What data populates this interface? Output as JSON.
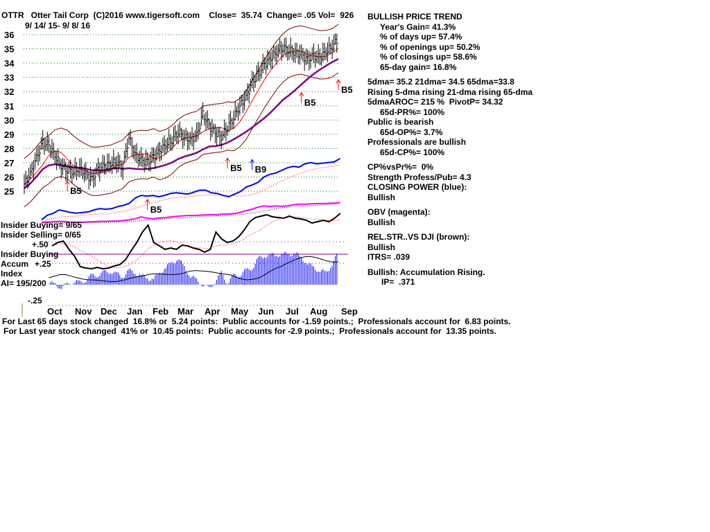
{
  "header": {
    "title": "OTTR   Otter Tail Corp  (C)2016 www.tigersoft.com    Close=  35.74  Change= .05 Vol=  926",
    "range": "9/ 14/ 15- 9/ 8/ 16"
  },
  "right_panel": [
    {
      "text": "BULLISH PRICE TREND",
      "indent": 0
    },
    {
      "text": "Year's Gain= 41.3%",
      "indent": 1
    },
    {
      "text": "% of days up= 57.4%",
      "indent": 1
    },
    {
      "text": "% of openings up= 50.2%",
      "indent": 1
    },
    {
      "text": "% of closings up= 58.6%",
      "indent": 1
    },
    {
      "text": "65-day gain= 16.8%",
      "indent": 1
    },
    {
      "text": "",
      "indent": 0
    },
    {
      "text": "5dma= 35.2 21dma= 34.5 65dma=33.8",
      "indent": 0
    },
    {
      "text": "Rising 5-dma rising 21-dma rising 65-dma",
      "indent": 0
    },
    {
      "text": "5dmaAROC= 215 %  PivotP= 34.32",
      "indent": 0
    },
    {
      "text": "65d-PR%= 100%",
      "indent": 1
    },
    {
      "text": "Public is bearish",
      "indent": 0
    },
    {
      "text": "65d-OP%= 3.7%",
      "indent": 1
    },
    {
      "text": "Professionals are bullish",
      "indent": 0
    },
    {
      "text": "65d-CP%= 100%",
      "indent": 1
    },
    {
      "text": "",
      "indent": 0
    },
    {
      "text": "CP%vsPr%=  0%",
      "indent": 0
    },
    {
      "text": "Strength Profess/Pub= 4.3",
      "indent": 0
    },
    {
      "text": "CLOSING POWER (blue):",
      "indent": 0
    },
    {
      "text": "Bullish",
      "indent": 0
    },
    {
      "text": "",
      "indent": 0
    },
    {
      "text": "OBV (magenta):",
      "indent": 0
    },
    {
      "text": "Bullish",
      "indent": 0
    },
    {
      "text": "",
      "indent": 0
    },
    {
      "text": "REL.STR..VS DJI (brown):",
      "indent": 0
    },
    {
      "text": "Bullish",
      "indent": 0
    },
    {
      "text": "ITRS= .039",
      "indent": 0
    },
    {
      "text": "",
      "indent": 0
    },
    {
      "text": "Bullish: Accumulation Rising.",
      "indent": 0
    },
    {
      "text": "IP=  .371",
      "indent": 2
    }
  ],
  "left_labels": {
    "insider_buying": "Insider Buying= 9/65",
    "insider_selling": "Insider Selling= 0/65",
    "plus50": "+.50",
    "insider_buying2": "Insider Buying",
    "accum": "Accum",
    "plus25": "+.25",
    "index": "Index",
    "ai": "AI= 195/200",
    "minus25": "-.25"
  },
  "footer": {
    "line1": "For Last 65 days stock changed  16.8% or  5.24 points:  Public accounts for -1.59 points.;  Professionals account for  6.83 points.",
    "line2": "For Last year stock changed  41% or  10.45 points:  Public accounts for -2.9 points.;  Professionals account for  13.35 points."
  },
  "colors": {
    "grid": "#008000",
    "band": "#800000",
    "ma65": "#800080",
    "cp": "#0000ff",
    "obv": "#ff00ff",
    "rs": "#000000",
    "accum": "#0000ff",
    "signal": "#ff0000"
  },
  "chart_data": {
    "type": "line",
    "title": "OTTR Otter Tail Corp",
    "ylim": [
      25,
      36
    ],
    "y_ticks": [
      36,
      35,
      34,
      33,
      32,
      31,
      30,
      29,
      28,
      27,
      26,
      25
    ],
    "x_ticks": [
      "Oct",
      "Nov",
      "Dec",
      "Jan",
      "Feb",
      "Mar",
      "Apr",
      "May",
      "Jun",
      "Jul",
      "Aug",
      "Sep"
    ],
    "weekly_close": [
      25.5,
      26.2,
      27.3,
      28.4,
      28.2,
      27.5,
      26.8,
      26.5,
      26.4,
      26.6,
      26.2,
      25.8,
      26.5,
      26.8,
      26.9,
      27.1,
      26.7,
      28.8,
      27.6,
      27.2,
      27.0,
      27.4,
      27.8,
      28.3,
      28.6,
      29.2,
      28.8,
      28.6,
      28.9,
      30.4,
      29.6,
      29.1,
      28.8,
      29.5,
      30.2,
      31.0,
      31.6,
      32.6,
      33.2,
      33.9,
      34.3,
      34.8,
      35.1,
      34.9,
      34.7,
      34.6,
      34.2,
      34.5,
      34.4,
      34.8,
      35.2,
      35.74
    ],
    "signals": [
      {
        "label": "B5",
        "week": 7,
        "price": 25.0,
        "type": "up"
      },
      {
        "label": "B5",
        "week": 20,
        "price": 23.7,
        "type": "up"
      },
      {
        "label": "B5",
        "week": 33,
        "price": 26.6,
        "type": "up"
      },
      {
        "label": "B9",
        "week": 37,
        "price": 26.5,
        "type": "upblue"
      },
      {
        "label": "B5",
        "week": 45,
        "price": 31.2,
        "type": "up"
      },
      {
        "label": "B5",
        "week": 51,
        "price": 32.1,
        "type": "up"
      }
    ],
    "closing_power": [
      0.05,
      0.12,
      0.15,
      0.2,
      0.18,
      0.16,
      0.15,
      0.16,
      0.17,
      0.2,
      0.22,
      0.21,
      0.22,
      0.25,
      0.27,
      0.3,
      0.38,
      0.42,
      0.41,
      0.42,
      0.4,
      0.42,
      0.45,
      0.46,
      0.45,
      0.44,
      0.47,
      0.5,
      0.5,
      0.46,
      0.45,
      0.42,
      0.4,
      0.44,
      0.48,
      0.55,
      0.58,
      0.62,
      0.7,
      0.74,
      0.76,
      0.8,
      0.84,
      0.86,
      0.85,
      0.9,
      0.92,
      0.9,
      0.91,
      0.92,
      0.93,
      0.98
    ],
    "obv": [
      0.1,
      0.1,
      0.12,
      0.13,
      0.12,
      0.1,
      0.1,
      0.1,
      0.11,
      0.12,
      0.13,
      0.13,
      0.14,
      0.14,
      0.16,
      0.18,
      0.22,
      0.28,
      0.24,
      0.22,
      0.24,
      0.26,
      0.28,
      0.3,
      0.32,
      0.33,
      0.33,
      0.34,
      0.35,
      0.36,
      0.36,
      0.38,
      0.38,
      0.4,
      0.44,
      0.5,
      0.55,
      0.62,
      0.66,
      0.64,
      0.66,
      0.65,
      0.66,
      0.7,
      0.72,
      0.72,
      0.73,
      0.74,
      0.74,
      0.75,
      0.76,
      0.78
    ],
    "rel_strength": [
      0.55,
      0.6,
      0.62,
      0.5,
      0.4,
      0.25,
      0.23,
      0.22,
      0.24,
      0.22,
      0.23,
      0.26,
      0.28,
      0.35,
      0.48,
      0.6,
      0.75,
      0.85,
      0.6,
      0.55,
      0.5,
      0.52,
      0.5,
      0.56,
      0.55,
      0.52,
      0.5,
      0.46,
      0.5,
      0.75,
      0.65,
      0.6,
      0.62,
      0.68,
      0.78,
      0.9,
      0.96,
      0.98,
      1.0,
      0.97,
      0.96,
      0.95,
      0.98,
      0.95,
      0.94,
      0.92,
      0.88,
      0.9,
      0.92,
      0.9,
      0.95,
      1.02
    ],
    "accum_index": [
      0.08,
      0.12,
      0.15,
      0.12,
      0.02,
      0.0,
      -0.03,
      0.0,
      0.04,
      0.02,
      0.06,
      0.1,
      0.12,
      0.14,
      0.16,
      0.12,
      0.1,
      0.16,
      0.14,
      0.1,
      0.08,
      0.06,
      0.14,
      0.2,
      0.26,
      0.3,
      0.2,
      0.1,
      0.05,
      0.0,
      -0.05,
      0.04,
      0.13,
      0.02,
      0.1,
      0.12,
      0.16,
      0.2,
      0.3,
      0.34,
      0.34,
      0.35,
      0.35,
      0.36,
      0.36,
      0.32,
      0.24,
      0.2,
      0.16,
      0.14,
      0.24,
      0.37
    ]
  }
}
